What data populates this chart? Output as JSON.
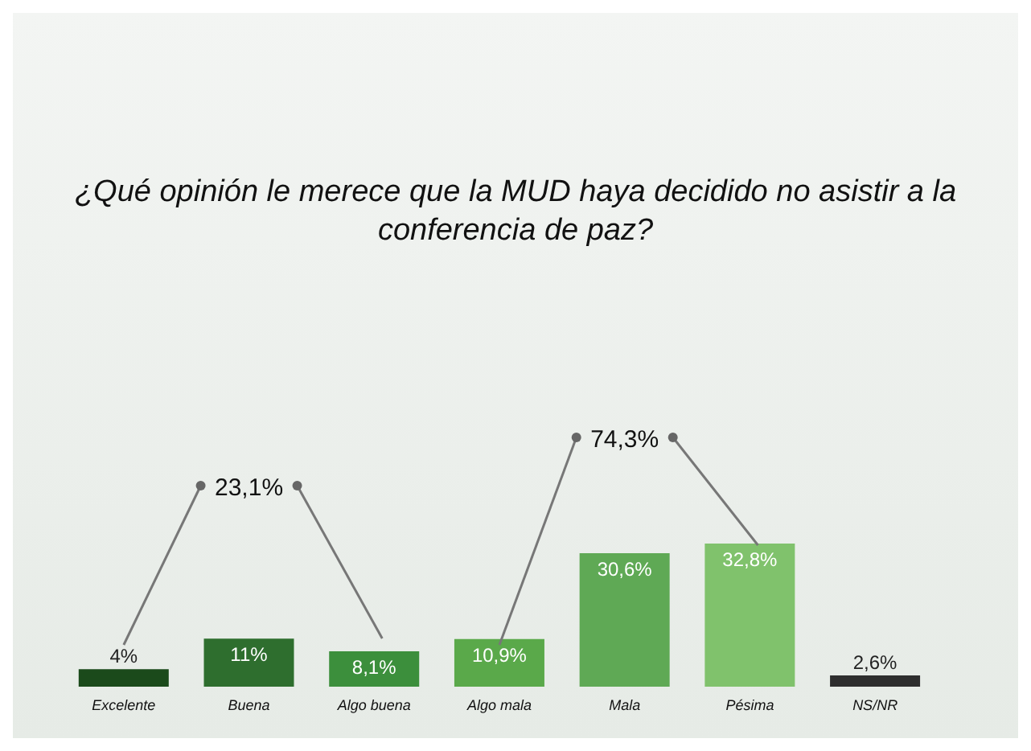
{
  "chart_data": {
    "type": "bar",
    "title": "¿Qué opinión le merece que la MUD haya decidido no asistir a la conferencia de paz?",
    "categories": [
      "Excelente",
      "Buena",
      "Algo buena",
      "Algo mala",
      "Mala",
      "Pésima",
      "NS/NR"
    ],
    "values": [
      4,
      11,
      8.1,
      10.9,
      30.6,
      32.8,
      2.6
    ],
    "value_labels": [
      "4%",
      "11%",
      "8,1%",
      "10,9%",
      "30,6%",
      "32,8%",
      "2,6%"
    ],
    "colors": [
      "#1b4a1b",
      "#2e6e2e",
      "#3c8f3c",
      "#5aa94a",
      "#5fa955",
      "#80c26c",
      "#2e2e2e"
    ],
    "annotations": [
      "23,1%",
      "74,3%"
    ]
  }
}
